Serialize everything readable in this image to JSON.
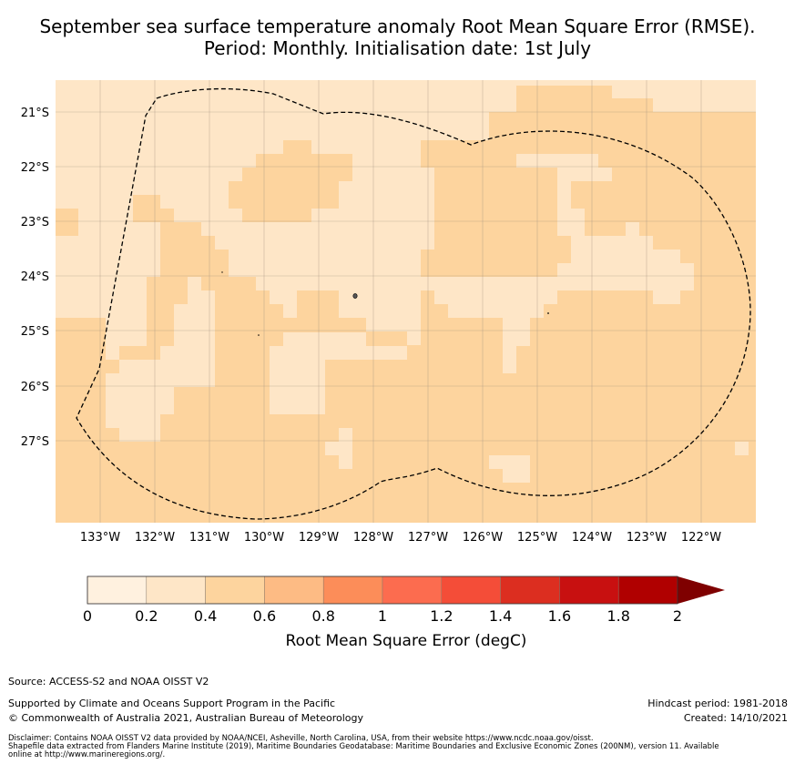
{
  "title": {
    "line1": "September sea surface temperature anomaly Root Mean Square Error (RMSE).",
    "line2": "Period: Monthly. Initialisation date: 1st July"
  },
  "map": {
    "lon_ticks": [
      "133°W",
      "132°W",
      "131°W",
      "130°W",
      "129°W",
      "128°W",
      "127°W",
      "126°W",
      "125°W",
      "124°W",
      "123°W",
      "122°W"
    ],
    "lat_ticks": [
      "21°S",
      "22°S",
      "23°S",
      "24°S",
      "25°S",
      "26°S",
      "27°S"
    ],
    "colors": {
      "bin_0_0.2": "#fff1df",
      "bin_0.2_0.4": "#fee6c7",
      "bin_0.4_0.6": "#fdd49e",
      "eez_boundary": "#000000",
      "grid": "#9a8a7a"
    },
    "field_description": "RMSE values mostly in the 0.2–0.6 degC range across the domain"
  },
  "colorbar": {
    "tick_labels": [
      "0",
      "0.2",
      "0.4",
      "0.6",
      "0.8",
      "1",
      "1.2",
      "1.4",
      "1.6",
      "1.8",
      "2"
    ],
    "colors": [
      "#fff1df",
      "#fee6c7",
      "#fdd49e",
      "#fdbb84",
      "#fc8d59",
      "#fc6c4f",
      "#f44d38",
      "#dc2e20",
      "#c81010",
      "#b00000",
      "#7f0000"
    ],
    "label": "Root Mean Square Error (degC)",
    "extend": "max"
  },
  "footer": {
    "source": "Source: ACCESS-S2 and NOAA OISST V2",
    "supported": "Supported by Climate and Oceans Support Program in the Pacific",
    "copyright": "© Commonwealth of Australia 2021, Australian Bureau of Meteorology",
    "hindcast": "Hindcast period: 1981-2018",
    "created": "Created: 14/10/2021",
    "disclaimer1": "Disclaimer: Contains NOAA OISST V2 data provided by NOAA/NCEI, Asheville, North Carolina, USA, from their website https://www.ncdc.noaa.gov/oisst.",
    "disclaimer2": "Shapefile data extracted from Flanders Marine Institute (2019), Maritime Boundaries Geodatabase: Maritime Boundaries and Exclusive Economic Zones (200NM), version 11. Available",
    "disclaimer3": "online at http://www.marineregions.org/."
  }
}
